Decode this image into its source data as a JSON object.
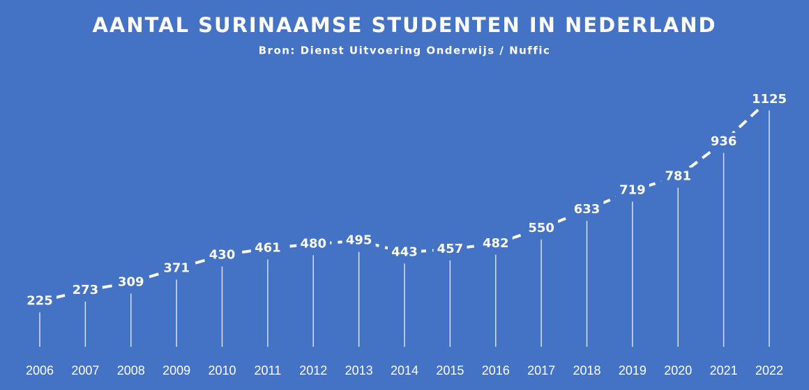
{
  "chart_data": {
    "type": "line",
    "title": "AANTAL SURINAAMSE STUDENTEN IN NEDERLAND",
    "subtitle": "Bron: Dienst Uitvoering Onderwijs / Nuffic",
    "categories": [
      "2006",
      "2007",
      "2008",
      "2009",
      "2010",
      "2011",
      "2012",
      "2013",
      "2014",
      "2015",
      "2016",
      "2017",
      "2018",
      "2019",
      "2020",
      "2021",
      "2022"
    ],
    "values": [
      225,
      273,
      309,
      371,
      430,
      461,
      480,
      495,
      443,
      457,
      482,
      550,
      633,
      719,
      781,
      936,
      1125
    ],
    "color": "#ffffff"
  }
}
